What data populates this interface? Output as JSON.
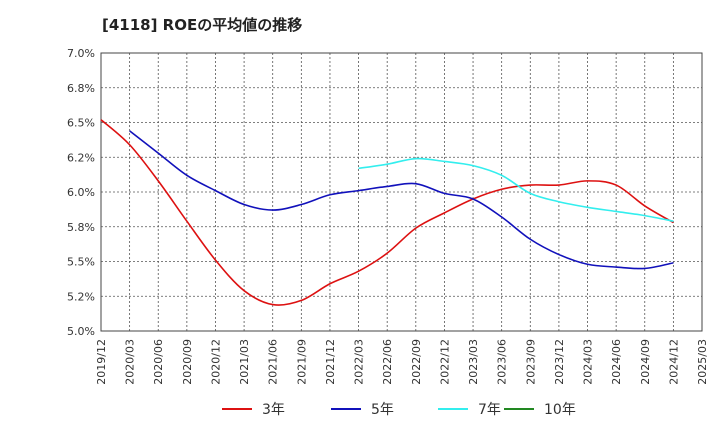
{
  "chart_data": {
    "type": "line",
    "title": "[4118]  ROEの平均値の推移",
    "xlabel": "",
    "ylabel": "",
    "ylim": [
      5.0,
      7.0
    ],
    "yticks": [
      5.0,
      5.25,
      5.5,
      5.75,
      6.0,
      6.25,
      6.5,
      6.75,
      7.0
    ],
    "ytick_labels": [
      "5.0%",
      "5.2%",
      "5.5%",
      "5.8%",
      "6.0%",
      "6.2%",
      "6.5%",
      "6.8%",
      "7.0%"
    ],
    "x_categories": [
      "2019/12",
      "2020/03",
      "2020/06",
      "2020/09",
      "2020/12",
      "2021/03",
      "2021/06",
      "2021/09",
      "2021/12",
      "2022/03",
      "2022/06",
      "2022/09",
      "2022/12",
      "2023/03",
      "2023/06",
      "2023/09",
      "2023/12",
      "2024/03",
      "2024/06",
      "2024/09",
      "2024/12",
      "2025/03"
    ],
    "grid": true,
    "legend_position": "bottom",
    "series": [
      {
        "name": "3年",
        "color": "#dd1111",
        "values": [
          6.52,
          6.34,
          6.08,
          5.79,
          5.51,
          5.29,
          5.19,
          5.22,
          5.34,
          5.43,
          5.56,
          5.74,
          5.85,
          5.95,
          6.02,
          6.05,
          6.05,
          6.08,
          6.05,
          5.9,
          5.78,
          null
        ]
      },
      {
        "name": "5年",
        "color": "#1111bb",
        "values": [
          null,
          6.44,
          6.28,
          6.12,
          6.01,
          5.91,
          5.87,
          5.91,
          5.98,
          6.01,
          6.04,
          6.06,
          5.99,
          5.95,
          5.82,
          5.66,
          5.55,
          5.48,
          5.46,
          5.45,
          5.49,
          null
        ]
      },
      {
        "name": "7年",
        "color": "#33eeee",
        "values": [
          null,
          null,
          null,
          null,
          null,
          null,
          null,
          null,
          null,
          6.17,
          6.2,
          6.24,
          6.22,
          6.19,
          6.12,
          5.99,
          5.93,
          5.89,
          5.86,
          5.83,
          5.79,
          null
        ]
      },
      {
        "name": "10年",
        "color": "#228822",
        "values": [
          null,
          null,
          null,
          null,
          null,
          null,
          null,
          null,
          null,
          null,
          null,
          null,
          null,
          null,
          null,
          null,
          null,
          null,
          null,
          null,
          null,
          null
        ]
      }
    ]
  }
}
